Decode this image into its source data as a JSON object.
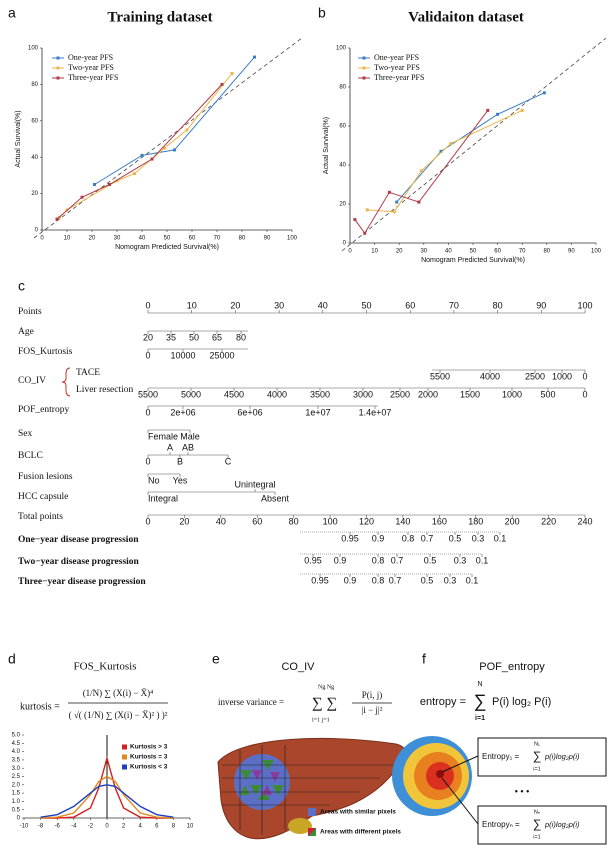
{
  "chart_data": [
    {
      "type": "line",
      "panel_label": "a",
      "title": "Training dataset",
      "xlabel": "Nomogram Predicted Survival(%)",
      "ylabel": "Actual Survival(%)",
      "xlim": [
        0,
        100
      ],
      "xticks": [
        0,
        10,
        20,
        30,
        40,
        50,
        60,
        70,
        80,
        90,
        100
      ],
      "ylim": [
        0,
        100
      ],
      "yticks": [
        0,
        20,
        40,
        60,
        80,
        100
      ],
      "reference_line": true,
      "legend": "upper left",
      "series": [
        {
          "name": "One-year PFS",
          "color": "#3b7cc6",
          "x": [
            21,
            40,
            53,
            85
          ],
          "values": [
            25,
            41,
            44,
            95
          ]
        },
        {
          "name": "Two-year PFS",
          "color": "#e9b64a",
          "x": [
            7,
            10,
            30,
            37,
            49,
            58,
            76
          ],
          "values": [
            7,
            11,
            27,
            31,
            45,
            55,
            86
          ]
        },
        {
          "name": "Three-year PFS",
          "color": "#b03a48",
          "x": [
            6,
            16,
            27,
            44,
            72
          ],
          "values": [
            6,
            18,
            25,
            39,
            80
          ]
        }
      ]
    },
    {
      "type": "line",
      "panel_label": "b",
      "title": "Validaiton dataset",
      "xlabel": "Nomogram Predicted Survival(%)",
      "ylabel": "Actual Survival(%)",
      "xlim": [
        0,
        100
      ],
      "xticks": [
        0,
        10,
        20,
        30,
        40,
        50,
        60,
        70,
        80,
        90,
        100
      ],
      "ylim": [
        0,
        100
      ],
      "yticks": [
        0,
        20,
        40,
        60,
        80,
        100
      ],
      "reference_line": true,
      "legend": "upper left",
      "series": [
        {
          "name": "One-year PFS",
          "color": "#3b7cc6",
          "x": [
            19,
            37,
            60,
            79
          ],
          "values": [
            21,
            47,
            66,
            77
          ]
        },
        {
          "name": "Two-year PFS",
          "color": "#e9b64a",
          "x": [
            7,
            18,
            29,
            41,
            70
          ],
          "values": [
            17,
            16,
            37,
            51,
            68
          ]
        },
        {
          "name": "Three-year PFS",
          "color": "#b03a48",
          "x": [
            2,
            6,
            16,
            28,
            56
          ],
          "values": [
            12,
            5,
            26,
            21,
            68
          ]
        }
      ]
    },
    {
      "type": "line",
      "panel_label": "d",
      "title": "FOS_Kurtosis",
      "formula": {
        "lhs": "kurtosis =",
        "numerator": "(1/N) ∑ (X(i) − X̄)⁴",
        "denominator": "( √( (1/N) ∑ (X(i) − X̄)² ) )²"
      },
      "xlim": [
        -10,
        10
      ],
      "xticks": [
        -10,
        -8,
        -6,
        -4,
        -2,
        0,
        2,
        4,
        6,
        8,
        10
      ],
      "ylim": [
        0,
        5
      ],
      "yticks": [
        0,
        0.5,
        {
          "value": 1,
          "label": "1.0"
        },
        1.5,
        {
          "value": 2,
          "label": "2.0"
        },
        2.5,
        {
          "value": 3,
          "label": "3.0"
        },
        3.5,
        {
          "value": 4,
          "label": "4.0"
        },
        4.5,
        {
          "value": 5,
          "label": "5.0"
        }
      ],
      "legend": "upper right",
      "x": [
        -8,
        -6,
        -4,
        -2,
        -1,
        0,
        1,
        2,
        4,
        6,
        8
      ],
      "series": [
        {
          "name": "Kurtosis > 3",
          "color": "#d42020",
          "values": [
            0,
            0,
            0.05,
            0.6,
            1.8,
            3.6,
            1.8,
            0.6,
            0.05,
            0,
            0
          ]
        },
        {
          "name": "Kurtosis = 3",
          "color": "#e08a1e",
          "values": [
            0,
            0.05,
            0.3,
            1.4,
            2.2,
            2.5,
            2.2,
            1.4,
            0.3,
            0.05,
            0
          ]
        },
        {
          "name": "Kurtosis < 3",
          "color": "#1f3fbf",
          "values": [
            0.05,
            0.2,
            0.7,
            1.5,
            1.9,
            2,
            1.9,
            1.5,
            0.7,
            0.2,
            0.05
          ]
        }
      ]
    }
  ],
  "nomogram": {
    "panel_label": "c",
    "rows": [
      {
        "name": "Points",
        "ticks": [
          "0",
          "10",
          "20",
          "30",
          "40",
          "50",
          "60",
          "70",
          "80",
          "90",
          "100"
        ]
      },
      {
        "name": "Age",
        "ticks": [
          "20",
          "35",
          "50",
          "65",
          "80"
        ]
      },
      {
        "name": "FOS_Kurtosis",
        "ticks": [
          "0",
          "10000",
          "25000"
        ]
      },
      {
        "name": "CO_IV",
        "subrows": [
          {
            "name": "TACE",
            "ticks": [
              "5500",
              "4000",
              "2500",
              "1000",
              "0"
            ]
          },
          {
            "name": "Liver resection",
            "ticks": [
              "5500",
              "5000",
              "4500",
              "4000",
              "3500",
              "3000",
              "2500",
              "2000",
              "1500",
              "1000",
              "500",
              "0"
            ]
          }
        ]
      },
      {
        "name": "POF_entropy",
        "ticks": [
          "0",
          "2e+06",
          "6e+06",
          "1e+07",
          "1.4e+07"
        ]
      },
      {
        "name": "Sex",
        "ticks": [
          "Female",
          "Male"
        ]
      },
      {
        "name": "BCLC",
        "ticks": [
          "0",
          "A",
          "AB",
          "B",
          "C"
        ]
      },
      {
        "name": "Fusion lesions",
        "ticks": [
          "No",
          "Yes"
        ]
      },
      {
        "name": "HCC capsule",
        "ticks": [
          "Integral",
          "Unintegral",
          "Absent"
        ]
      },
      {
        "name": "Total points",
        "ticks": [
          "0",
          "20",
          "40",
          "60",
          "80",
          "100",
          "120",
          "140",
          "160",
          "180",
          "200",
          "220",
          "240"
        ]
      },
      {
        "name": "One−year disease progression",
        "ticks": [
          "0.95",
          "0.9",
          "0.8",
          "0.7",
          "0.5",
          "0.3",
          "0.1"
        ]
      },
      {
        "name": "Two−year disease progression",
        "ticks": [
          "0.95",
          "0.9",
          "0.8",
          "0.7",
          "0.5",
          "0.3",
          "0.1"
        ]
      },
      {
        "name": "Three−year disease progression",
        "ticks": [
          "0.95",
          "0.9",
          "0.8",
          "0.7",
          "0.5",
          "0.3",
          "0.1"
        ]
      }
    ]
  },
  "panel_e": {
    "panel_label": "e",
    "title": "CO_IV",
    "formula": {
      "lhs": "inverse variance =",
      "sums": "∑ ∑",
      "upper": "Ng  Ng",
      "lower": "i=1 j=1",
      "numerator": "P(i, j)",
      "denominator": "|i − j|²"
    },
    "legend": [
      "Areas with similar pixels",
      "Areas with different pixels"
    ]
  },
  "panel_f": {
    "panel_label": "f",
    "title": "POF_entropy",
    "formula": {
      "lhs": "entropy =",
      "sum": "∑",
      "upper": "N",
      "lower": "i=1",
      "expr": "P(i) log₂ P(i)"
    },
    "boxes": [
      {
        "lhs": "Entropy₁ =",
        "sum": "∑",
        "upper": "N₁",
        "lower": "i=1",
        "expr": "p(i)log₂p(i)"
      },
      {
        "lhs": "Entropyₙ =",
        "sum": "∑",
        "upper": "Nₙ",
        "lower": "i=1",
        "expr": "p(i)log₂p(i)"
      }
    ],
    "ellipsis": "• • •"
  }
}
